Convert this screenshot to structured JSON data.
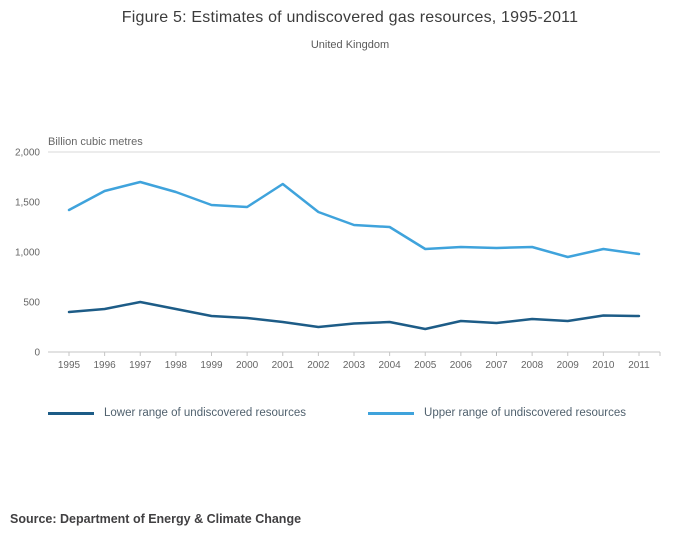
{
  "page": {
    "title": "Figure 5: Estimates of undiscovered gas resources, 1995-2011",
    "subtitle": "United Kingdom",
    "source": "Source: Department of Energy & Climate Change"
  },
  "chart_data": {
    "type": "line",
    "title": "Figure 5: Estimates of undiscovered gas resources, 1995-2011",
    "subtitle": "United Kingdom",
    "unit_label": "Billion cubic metres",
    "x": [
      1995,
      1996,
      1997,
      1998,
      1999,
      2000,
      2001,
      2002,
      2003,
      2004,
      2005,
      2006,
      2007,
      2008,
      2009,
      2010,
      2011
    ],
    "series": [
      {
        "name": "Lower range of undiscovered resources",
        "color": "#1d5c87",
        "values": [
          400,
          430,
          500,
          430,
          360,
          340,
          300,
          250,
          285,
          300,
          230,
          310,
          290,
          330,
          310,
          365,
          360
        ]
      },
      {
        "name": "Upper range of undiscovered resources",
        "color": "#3fa3dc",
        "values": [
          1420,
          1610,
          1700,
          1600,
          1470,
          1450,
          1680,
          1400,
          1270,
          1250,
          1030,
          1050,
          1040,
          1050,
          950,
          1030,
          980
        ]
      }
    ],
    "ylim": [
      0,
      2000
    ],
    "yticks": [
      0,
      500,
      1000,
      1500,
      2000
    ],
    "grid": "top gridline and zero baseline only",
    "legend_position": "bottom",
    "accent_colors": {
      "lower": "#1d5c87",
      "upper": "#3fa3dc"
    }
  }
}
